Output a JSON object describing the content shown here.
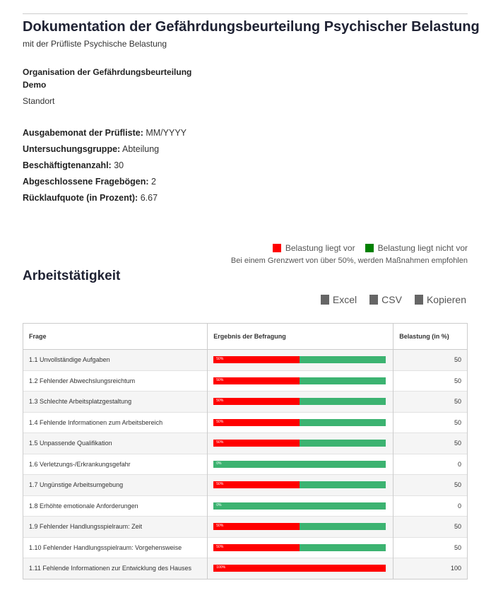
{
  "header": {
    "title": "Dokumentation der Gefährdungsbeurteilung Psychischer Belastung",
    "subtitle": "mit der Prüfliste Psychische Belastung"
  },
  "organisation": {
    "heading": "Organisation der Gefährdungsbeurteilung",
    "name": "Demo",
    "location": "Standort"
  },
  "fields": [
    {
      "label": "Ausgabemonat der Prüfliste:",
      "value": "MM/YYYY"
    },
    {
      "label": "Untersuchungsgruppe:",
      "value": "Abteilung"
    },
    {
      "label": "Beschäftigtenanzahl:",
      "value": 30
    },
    {
      "label": "Abgeschlossene Fragebögen:",
      "value": 2
    },
    {
      "label": "Rücklaufquote (in Prozent):",
      "value": 6.67
    }
  ],
  "legend": {
    "items": [
      {
        "label": "Belastung liegt vor",
        "color": "#ff0000"
      },
      {
        "label": "Belastung liegt nicht vor",
        "color": "#008000"
      }
    ],
    "note": "Bei einem Grenzwert von über 50%, werden Maßnahmen empfohlen"
  },
  "section": {
    "title": "Arbeitstätigkeit",
    "buttons": [
      "Excel",
      "CSV",
      "Kopieren"
    ]
  },
  "table": {
    "columns": [
      "Frage",
      "Ergebnis der Befragung",
      "Belastung (in %)"
    ],
    "bar_colors": [
      "#ff0000",
      "#3cb371"
    ],
    "rows": [
      {
        "frage": "1.1 Unvollständige Aufgaben",
        "belastung": 50,
        "bar_label": "50%"
      },
      {
        "frage": "1.2 Fehlender Abwechslungsreichtum",
        "belastung": 50,
        "bar_label": "50%"
      },
      {
        "frage": "1.3 Schlechte Arbeitsplatzgestaltung",
        "belastung": 50,
        "bar_label": "50%"
      },
      {
        "frage": "1.4 Fehlende Informationen zum Arbeitsbereich",
        "belastung": 50,
        "bar_label": "50%"
      },
      {
        "frage": "1.5 Unpassende Qualifikation",
        "belastung": 50,
        "bar_label": "50%"
      },
      {
        "frage": "1.6 Verletzungs-/Erkrankungsgefahr",
        "belastung": 0,
        "bar_label": "0%"
      },
      {
        "frage": "1.7 Ungünstige Arbeitsumgebung",
        "belastung": 50,
        "bar_label": "50%"
      },
      {
        "frage": "1.8 Erhöhte emotionale Anforderungen",
        "belastung": 0,
        "bar_label": "0%"
      },
      {
        "frage": "1.9 Fehlender Handlungsspielraum: Zeit",
        "belastung": 50,
        "bar_label": "50%"
      },
      {
        "frage": "1.10 Fehlender Handlungsspielraum: Vorgehensweise",
        "belastung": 50,
        "bar_label": "50%"
      },
      {
        "frage": "1.11 Fehlende Informationen zur Entwicklung des Hauses",
        "belastung": 100,
        "bar_label": "100%"
      }
    ]
  }
}
